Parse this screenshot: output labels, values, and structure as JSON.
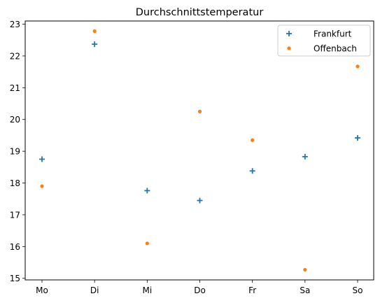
{
  "chart_data": {
    "type": "scatter",
    "title": "Durchschnittstemperatur",
    "xlabel": "",
    "ylabel": "",
    "categories": [
      "Mo",
      "Di",
      "Mi",
      "Do",
      "Fr",
      "Sa",
      "So"
    ],
    "ylim": [
      14.95,
      23.1
    ],
    "yticks": [
      15,
      16,
      17,
      18,
      19,
      20,
      21,
      22,
      23
    ],
    "grid": false,
    "legend_position": "top-right",
    "series": [
      {
        "name": "Frankfurt",
        "marker": "plus",
        "color": "#1f77b4",
        "values": [
          18.75,
          22.37,
          17.76,
          17.45,
          18.38,
          18.83,
          19.42
        ]
      },
      {
        "name": "Offenbach",
        "marker": "circle",
        "color": "#ff7f0e",
        "values": [
          17.9,
          22.78,
          16.1,
          20.25,
          19.35,
          15.27,
          21.67
        ]
      }
    ]
  }
}
